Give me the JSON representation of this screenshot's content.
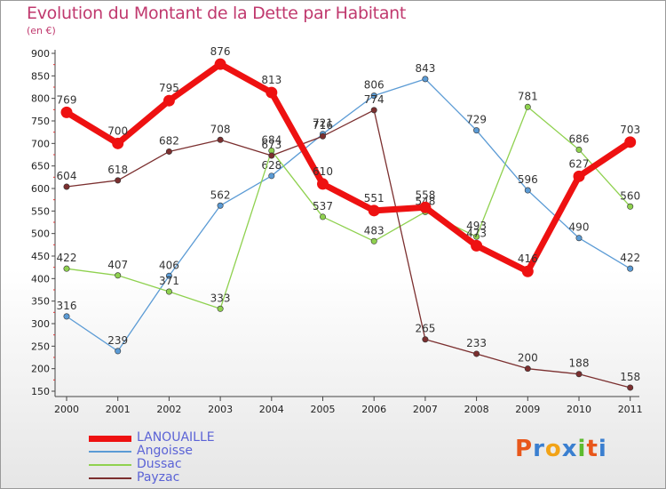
{
  "header": {
    "title": "Evolution du Montant de la Dette par Habitant",
    "subtitle": "(en €)"
  },
  "logo": {
    "letters": [
      "P",
      "r",
      "o",
      "x",
      "i",
      "t",
      "i"
    ],
    "colors": [
      "#e8571b",
      "#3a7fd0",
      "#f2a317",
      "#3a7fd0",
      "#5dbb2f",
      "#e8571b",
      "#3a7fd0"
    ]
  },
  "chart_data": {
    "type": "line",
    "title": "Evolution du Montant de la Dette par Habitant",
    "subtitle": "(en €)",
    "x": [
      "2000",
      "2001",
      "2002",
      "2003",
      "2004",
      "2005",
      "2006",
      "2007",
      "2008",
      "2009",
      "2010",
      "2011"
    ],
    "ylim": [
      150,
      900
    ],
    "yticks": [
      150,
      200,
      250,
      300,
      350,
      400,
      450,
      500,
      550,
      600,
      650,
      700,
      750,
      800,
      850,
      900
    ],
    "grid": false,
    "legend_position": "bottom-left",
    "series": [
      {
        "name": "LANOUAILLE",
        "color": "#ee1111",
        "width": 7,
        "values": [
          769,
          700,
          795,
          876,
          813,
          610,
          551,
          558,
          473,
          416,
          627,
          703
        ],
        "labels": [
          "769",
          "700",
          "795",
          "876",
          "813",
          "610",
          "551",
          "558",
          "473",
          "416",
          "627",
          "703"
        ]
      },
      {
        "name": "Angoisse",
        "color": "#5b9bd5",
        "width": 1.3,
        "values": [
          316,
          239,
          406,
          562,
          628,
          721,
          806,
          843,
          729,
          596,
          490,
          422
        ],
        "labels": [
          "316",
          "239",
          "406",
          "562",
          "628",
          "721",
          "806",
          "843",
          "729",
          "596",
          "490",
          "422"
        ]
      },
      {
        "name": "Dussac",
        "color": "#8fd14f",
        "width": 1.3,
        "values": [
          422,
          407,
          371,
          333,
          684,
          537,
          483,
          548,
          493,
          781,
          686,
          560
        ],
        "labels": [
          "422",
          "407",
          "371",
          "333",
          "684",
          "537",
          "483",
          "548",
          "493",
          "781",
          "686",
          "560"
        ]
      },
      {
        "name": "Payzac",
        "color": "#7b2f2f",
        "width": 1.3,
        "values": [
          604,
          618,
          682,
          708,
          673,
          716,
          774,
          265,
          233,
          200,
          188,
          158
        ],
        "labels": [
          "604",
          "618",
          "682",
          "708",
          "673",
          "716",
          "774",
          "265",
          "233",
          "200",
          "188",
          "158"
        ]
      }
    ]
  }
}
